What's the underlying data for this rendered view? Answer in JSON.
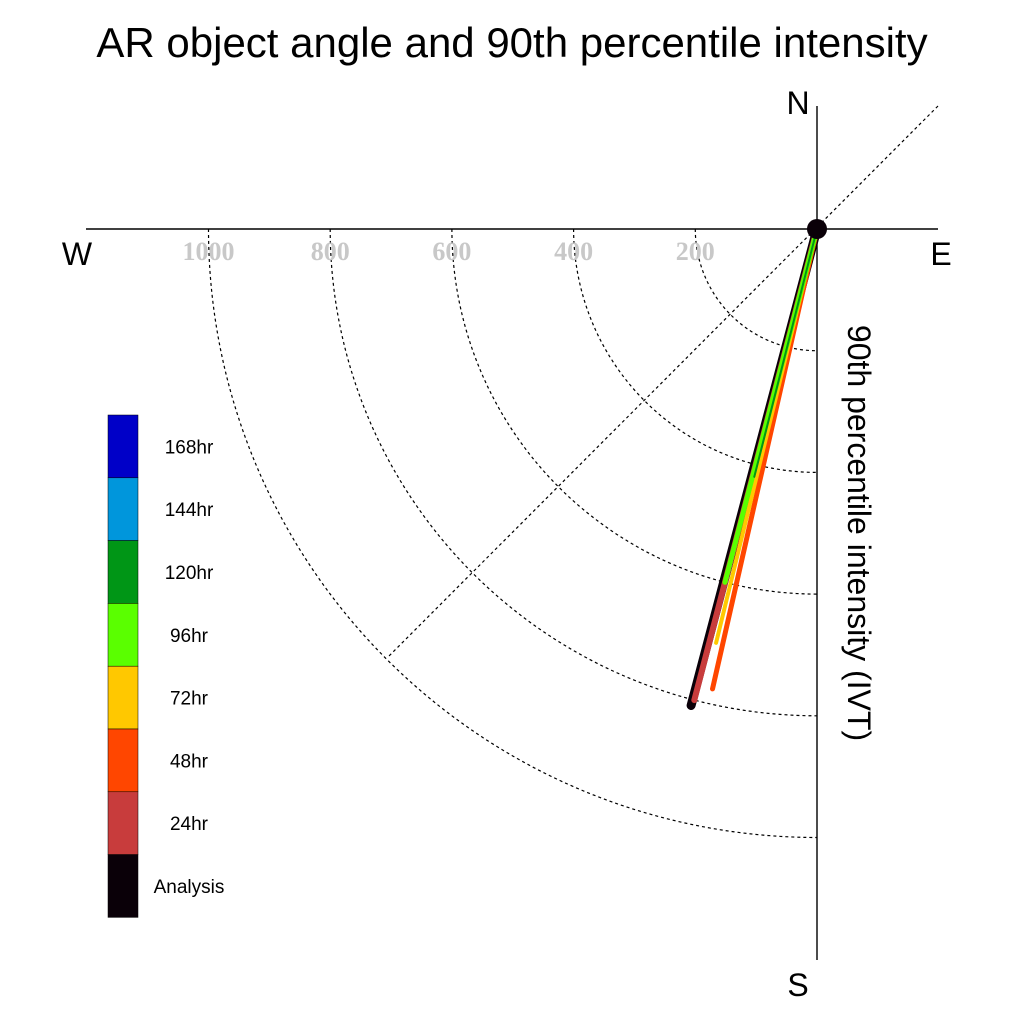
{
  "chart_data": {
    "type": "polar-vector",
    "title": "AR object angle and 90th percentile intensity",
    "axis_label": "90th percentile intensity (IVT)",
    "compass": {
      "north": "N",
      "south": "S",
      "east": "E",
      "west": "W"
    },
    "radial_ticks": [
      200,
      400,
      600,
      800,
      1000
    ],
    "radial_tick_labels": [
      "200",
      "400",
      "600",
      "800",
      "1000"
    ],
    "radial_max": 1200,
    "legend": [
      {
        "label": "168hr",
        "color": "#0000c8"
      },
      {
        "label": "144hr",
        "color": "#0096dc"
      },
      {
        "label": "120hr",
        "color": "#009616"
      },
      {
        "label": "96hr",
        "color": "#5aff00"
      },
      {
        "label": "72hr",
        "color": "#ffc800"
      },
      {
        "label": "48hr",
        "color": "#ff4600"
      },
      {
        "label": "24hr",
        "color": "#c83c3c"
      },
      {
        "label": "Analysis",
        "color": "#0a0008"
      }
    ],
    "vectors": [
      {
        "lead": "Analysis",
        "color": "#0a0008",
        "bearing_deg": 194.8,
        "intensity": 810,
        "width": 9
      },
      {
        "lead": "24hr",
        "color": "#c83c3c",
        "bearing_deg": 194.6,
        "intensity": 800,
        "width": 6
      },
      {
        "lead": "48hr",
        "color": "#ff4600",
        "bearing_deg": 192.8,
        "intensity": 775,
        "width": 5
      },
      {
        "lead": "72hr",
        "color": "#ffc800",
        "bearing_deg": 193.7,
        "intensity": 700,
        "width": 4
      },
      {
        "lead": "96hr",
        "color": "#5aff00",
        "bearing_deg": 194.6,
        "intensity": 600,
        "width": 5
      },
      {
        "lead": "120hr",
        "color": "#009616",
        "bearing_deg": 194.2,
        "intensity": 420,
        "width": 2
      }
    ]
  }
}
